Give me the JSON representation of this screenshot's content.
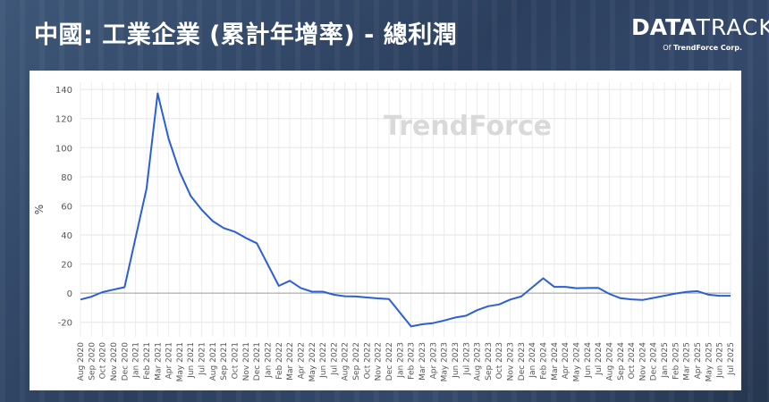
{
  "header": {
    "title": "中國: 工業企業 (累計年增率) - 總利潤",
    "logo_data": "DATA",
    "logo_track": "TRACK",
    "logo_of": "Of",
    "logo_company": "TrendForce Corp."
  },
  "watermark": "TrendForce",
  "chart_data": {
    "type": "line",
    "title": "中國: 工業企業 (累計年增率) - 總利潤",
    "xlabel": "",
    "ylabel": "%",
    "ylim": [
      -30,
      145
    ],
    "yticks": [
      -20,
      0,
      20,
      40,
      60,
      80,
      100,
      120,
      140
    ],
    "grid": true,
    "line_color": "#2a5fd6",
    "categories": [
      "Aug 2020",
      "Sep 2020",
      "Oct 2020",
      "Nov 2020",
      "Dec 2020",
      "Jan 2021",
      "Feb 2021",
      "Mar 2021",
      "Apr 2021",
      "May 2021",
      "Jun 2021",
      "Jul 2021",
      "Aug 2021",
      "Sep 2021",
      "Oct 2021",
      "Nov 2021",
      "Dec 2021",
      "Jan 2022",
      "Feb 2022",
      "Mar 2022",
      "Apr 2022",
      "May 2022",
      "Jun 2022",
      "Jul 2022",
      "Aug 2022",
      "Sep 2022",
      "Oct 2022",
      "Nov 2022",
      "Dec 2022",
      "Jan 2023",
      "Feb 2023",
      "Mar 2023",
      "Apr 2023",
      "May 2023",
      "Jun 2023",
      "Jul 2023",
      "Aug 2023",
      "Sep 2023",
      "Oct 2023",
      "Nov 2023",
      "Dec 2023",
      "Jan 2024",
      "Feb 2024",
      "Mar 2024",
      "Apr 2024",
      "May 2024",
      "Jun 2024",
      "Jul 2024",
      "Aug 2024",
      "Sep 2024",
      "Oct 2024",
      "Nov 2024",
      "Dec 2024",
      "Jan 2025",
      "Feb 2025",
      "Mar 2025",
      "Apr 2025",
      "May 2025",
      "Jun 2025",
      "Jul 2025"
    ],
    "values": [
      -4.4,
      -2.4,
      0.7,
      2.4,
      4.1,
      null,
      71.9,
      137.3,
      106.0,
      83.4,
      66.9,
      57.3,
      49.5,
      44.7,
      42.2,
      38.0,
      34.3,
      null,
      5.0,
      8.5,
      3.5,
      1.0,
      1.0,
      -1.1,
      -2.1,
      -2.3,
      -3.0,
      -3.6,
      -4.0,
      null,
      -22.9,
      -21.4,
      -20.6,
      -18.8,
      -16.8,
      -15.5,
      -11.7,
      -9.0,
      -7.8,
      -4.4,
      -2.3,
      null,
      10.2,
      4.3,
      4.3,
      3.4,
      3.5,
      3.6,
      -0.5,
      -3.5,
      -4.3,
      -4.7,
      -3.3,
      null,
      -0.3,
      0.8,
      1.4,
      -1.1,
      -1.8,
      -1.8
    ]
  }
}
